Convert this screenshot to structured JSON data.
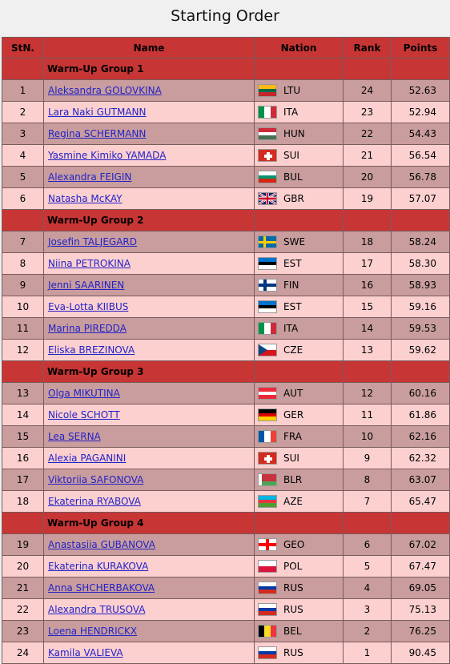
{
  "title": "Starting Order",
  "headers": {
    "stn": "StN.",
    "name": "Name",
    "nation": "Nation",
    "rank": "Rank",
    "points": "Points"
  },
  "groups": [
    {
      "label": "Warm-Up Group 1",
      "skaters": [
        {
          "stn": "1",
          "name": "Aleksandra GOLOVKINA",
          "nation": "LTU",
          "rank": "24",
          "points": "52.63"
        },
        {
          "stn": "2",
          "name": "Lara Naki GUTMANN",
          "nation": "ITA",
          "rank": "23",
          "points": "52.94"
        },
        {
          "stn": "3",
          "name": "Regina SCHERMANN",
          "nation": "HUN",
          "rank": "22",
          "points": "54.43"
        },
        {
          "stn": "4",
          "name": "Yasmine Kimiko YAMADA",
          "nation": "SUI",
          "rank": "21",
          "points": "56.54"
        },
        {
          "stn": "5",
          "name": "Alexandra FEIGIN",
          "nation": "BUL",
          "rank": "20",
          "points": "56.78"
        },
        {
          "stn": "6",
          "name": "Natasha McKAY",
          "nation": "GBR",
          "rank": "19",
          "points": "57.07"
        }
      ]
    },
    {
      "label": "Warm-Up Group 2",
      "skaters": [
        {
          "stn": "7",
          "name": "Josefin TALJEGARD",
          "nation": "SWE",
          "rank": "18",
          "points": "58.24"
        },
        {
          "stn": "8",
          "name": "Niina PETROKINA",
          "nation": "EST",
          "rank": "17",
          "points": "58.30"
        },
        {
          "stn": "9",
          "name": "Jenni SAARINEN",
          "nation": "FIN",
          "rank": "16",
          "points": "58.93"
        },
        {
          "stn": "10",
          "name": "Eva-Lotta KIIBUS",
          "nation": "EST",
          "rank": "15",
          "points": "59.16"
        },
        {
          "stn": "11",
          "name": "Marina PIREDDA",
          "nation": "ITA",
          "rank": "14",
          "points": "59.53"
        },
        {
          "stn": "12",
          "name": "Eliska BREZINOVA",
          "nation": "CZE",
          "rank": "13",
          "points": "59.62"
        }
      ]
    },
    {
      "label": "Warm-Up Group 3",
      "skaters": [
        {
          "stn": "13",
          "name": "Olga MIKUTINA",
          "nation": "AUT",
          "rank": "12",
          "points": "60.16"
        },
        {
          "stn": "14",
          "name": "Nicole SCHOTT",
          "nation": "GER",
          "rank": "11",
          "points": "61.86"
        },
        {
          "stn": "15",
          "name": "Lea SERNA",
          "nation": "FRA",
          "rank": "10",
          "points": "62.16"
        },
        {
          "stn": "16",
          "name": "Alexia PAGANINI",
          "nation": "SUI",
          "rank": "9",
          "points": "62.32"
        },
        {
          "stn": "17",
          "name": "Viktoriia SAFONOVA",
          "nation": "BLR",
          "rank": "8",
          "points": "63.07"
        },
        {
          "stn": "18",
          "name": "Ekaterina RYABOVA",
          "nation": "AZE",
          "rank": "7",
          "points": "65.47"
        }
      ]
    },
    {
      "label": "Warm-Up Group 4",
      "skaters": [
        {
          "stn": "19",
          "name": "Anastasiia GUBANOVA",
          "nation": "GEO",
          "rank": "6",
          "points": "67.02"
        },
        {
          "stn": "20",
          "name": "Ekaterina KURAKOVA",
          "nation": "POL",
          "rank": "5",
          "points": "67.47"
        },
        {
          "stn": "21",
          "name": "Anna SHCHERBAKOVA",
          "nation": "RUS",
          "rank": "4",
          "points": "69.05"
        },
        {
          "stn": "22",
          "name": "Alexandra TRUSOVA",
          "nation": "RUS",
          "rank": "3",
          "points": "75.13"
        },
        {
          "stn": "23",
          "name": "Loena HENDRICKX",
          "nation": "BEL",
          "rank": "2",
          "points": "76.25"
        },
        {
          "stn": "24",
          "name": "Kamila VALIEVA",
          "nation": "RUS",
          "rank": "1",
          "points": "90.45"
        }
      ]
    }
  ],
  "colors": {
    "header_bg": "#c83535",
    "row_odd": "#c99d9d",
    "row_even": "#fdd0d0",
    "link": "#2323c8"
  }
}
